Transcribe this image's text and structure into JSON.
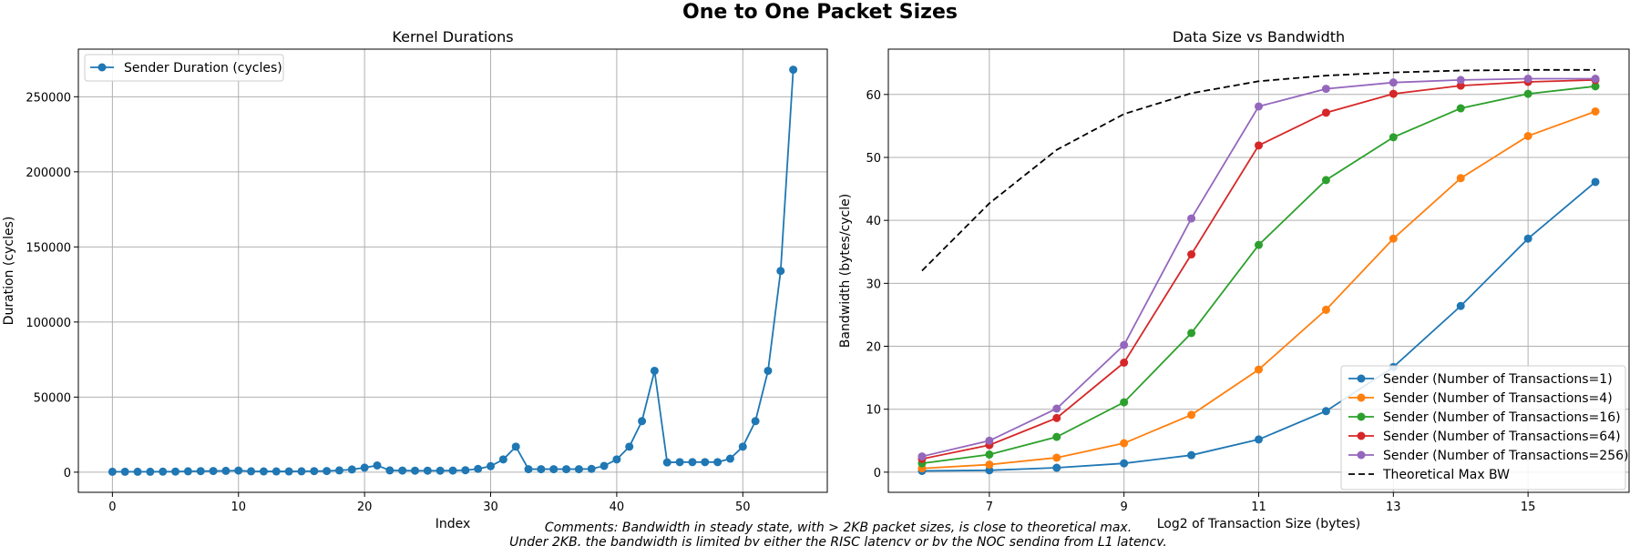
{
  "figure": {
    "suptitle": "One to One Packet Sizes",
    "comment_line1": "Comments: Bandwidth in steady state, with > 2KB packet sizes, is close to theoretical max.",
    "comment_line2": "Under 2KB, the bandwidth is limited by either the RISC latency or by the NOC sending from L1 latency."
  },
  "chart_data": [
    {
      "type": "line",
      "title": "Kernel Durations",
      "xlabel": "Index",
      "ylabel": "Duration (cycles)",
      "xlim": [
        -2.7,
        56.7
      ],
      "ylim": [
        -13400,
        281700
      ],
      "xticks": [
        0,
        10,
        20,
        30,
        40,
        50
      ],
      "yticks": [
        0,
        50000,
        100000,
        150000,
        200000,
        250000
      ],
      "grid": true,
      "legend_position": "upper left",
      "series": [
        {
          "name": "Sender Duration (cycles)",
          "color": "#1f77b4",
          "marker": "circle",
          "x": [
            0,
            1,
            2,
            3,
            4,
            5,
            6,
            7,
            8,
            9,
            10,
            11,
            12,
            13,
            14,
            15,
            16,
            17,
            18,
            19,
            20,
            21,
            22,
            23,
            24,
            25,
            26,
            27,
            28,
            29,
            30,
            31,
            32,
            33,
            34,
            35,
            36,
            37,
            38,
            39,
            40,
            41,
            42,
            43,
            44,
            45,
            46,
            47,
            48,
            49,
            50,
            51,
            52,
            53,
            54
          ],
          "y": [
            300,
            300,
            300,
            300,
            350,
            400,
            600,
            700,
            800,
            900,
            1100,
            600,
            500,
            500,
            500,
            600,
            700,
            800,
            1200,
            1800,
            3000,
            4500,
            1200,
            1100,
            1000,
            1000,
            1000,
            1100,
            1300,
            2200,
            4000,
            8500,
            17000,
            2000,
            2000,
            2000,
            2000,
            2000,
            2200,
            4200,
            8500,
            17000,
            34000,
            67500,
            6500,
            6700,
            6700,
            6700,
            6700,
            9000,
            17000,
            34000,
            67500,
            134000,
            268000
          ]
        }
      ]
    },
    {
      "type": "line",
      "title": "Data Size vs Bandwidth",
      "xlabel": "Log2 of Transaction Size (bytes)",
      "ylabel": "Bandwidth (bytes/cycle)",
      "xlim": [
        5.5,
        16.5
      ],
      "ylim": [
        -3.2,
        67.2
      ],
      "xticks": [
        7,
        9,
        11,
        13,
        15
      ],
      "yticks": [
        0,
        10,
        20,
        30,
        40,
        50,
        60
      ],
      "grid": true,
      "legend_position": "lower right",
      "x": [
        6,
        7,
        8,
        9,
        10,
        11,
        12,
        13,
        14,
        15,
        16
      ],
      "series": [
        {
          "name": "Sender (Number of Transactions=1)",
          "color": "#1f77b4",
          "style": "solid-marker",
          "values": [
            0.2,
            0.3,
            0.7,
            1.4,
            2.7,
            5.2,
            9.7,
            16.7,
            26.4,
            37.1,
            46.1
          ]
        },
        {
          "name": "Sender (Number of Transactions=4)",
          "color": "#ff7f0e",
          "style": "solid-marker",
          "values": [
            0.6,
            1.2,
            2.3,
            4.6,
            9.1,
            16.3,
            25.8,
            37.1,
            46.7,
            53.4,
            57.3
          ]
        },
        {
          "name": "Sender (Number of Transactions=16)",
          "color": "#2ca02c",
          "style": "solid-marker",
          "values": [
            1.4,
            2.8,
            5.6,
            11.1,
            22.1,
            36.1,
            46.4,
            53.2,
            57.8,
            60.1,
            61.3
          ]
        },
        {
          "name": "Sender (Number of Transactions=64)",
          "color": "#d62728",
          "style": "solid-marker",
          "values": [
            2.1,
            4.3,
            8.6,
            17.4,
            34.6,
            51.9,
            57.1,
            60.1,
            61.4,
            62.0,
            62.3
          ]
        },
        {
          "name": "Sender (Number of Transactions=256)",
          "color": "#9467bd",
          "style": "solid-marker",
          "values": [
            2.5,
            5.0,
            10.1,
            20.2,
            40.3,
            58.1,
            60.9,
            61.9,
            62.3,
            62.5,
            62.5
          ]
        },
        {
          "name": "Theoretical Max BW",
          "color": "#000000",
          "style": "dashed",
          "values": [
            32.0,
            42.7,
            51.2,
            56.9,
            60.2,
            62.1,
            63.0,
            63.5,
            63.8,
            63.9,
            63.9
          ]
        }
      ]
    }
  ]
}
